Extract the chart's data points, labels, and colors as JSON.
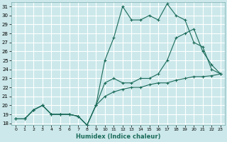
{
  "title": "",
  "xlabel": "Humidex (Indice chaleur)",
  "bg_color": "#cce8ea",
  "grid_color": "#ffffff",
  "line_color": "#1a6b5a",
  "xlim": [
    -0.5,
    23.5
  ],
  "ylim": [
    17.8,
    31.5
  ],
  "xticks": [
    0,
    1,
    2,
    3,
    4,
    5,
    6,
    7,
    8,
    9,
    10,
    11,
    12,
    13,
    14,
    15,
    16,
    17,
    18,
    19,
    20,
    21,
    22,
    23
  ],
  "yticks": [
    18,
    19,
    20,
    21,
    22,
    23,
    24,
    25,
    26,
    27,
    28,
    29,
    30,
    31
  ],
  "series": [
    [
      18.5,
      18.5,
      19.5,
      20.0,
      19.0,
      19.0,
      19.0,
      18.8,
      17.8,
      20.0,
      21.0,
      21.5,
      21.8,
      22.0,
      22.0,
      22.3,
      22.5,
      22.5,
      22.8,
      23.0,
      23.2,
      23.2,
      23.3,
      23.5
    ],
    [
      18.5,
      18.5,
      19.5,
      20.0,
      19.0,
      19.0,
      19.0,
      18.8,
      17.8,
      20.0,
      25.0,
      27.5,
      31.0,
      29.5,
      29.5,
      30.0,
      29.5,
      31.3,
      30.0,
      29.5,
      27.0,
      26.5,
      24.0,
      23.5
    ],
    [
      18.5,
      18.5,
      19.5,
      20.0,
      19.0,
      19.0,
      19.0,
      18.8,
      17.8,
      20.0,
      22.5,
      23.0,
      22.5,
      22.5,
      23.0,
      23.0,
      23.5,
      25.0,
      27.5,
      28.0,
      28.5,
      26.0,
      24.5,
      23.5
    ]
  ]
}
